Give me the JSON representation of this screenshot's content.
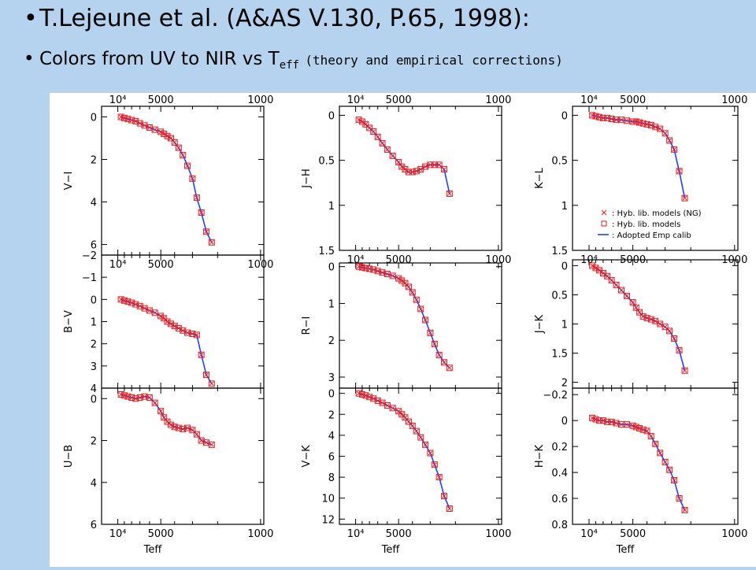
{
  "slide": {
    "bullet1": "T.Lejeune et al. (A&AS V.130, P.65, 1998):",
    "bullet2_main": "Colors from UV to NIR vs T",
    "bullet2_sub": "eff",
    "bullet2_paren": "(theory and empirical corrections)"
  },
  "colors": {
    "background": "#b5d3ef",
    "model_marker": "#e41a1c",
    "calibration_line": "#2040ff"
  },
  "chart_data": [
    {
      "type": "scatter",
      "ylabel": "V−I",
      "xlabel": "",
      "x_ticks": [
        "10⁴",
        "5000",
        "1000"
      ],
      "top_axis_ticks": [
        "10⁴",
        "5000",
        "1000"
      ],
      "y_ticks": [
        "0",
        "2",
        "4",
        "6"
      ],
      "ylim": [
        -0.5,
        6.5
      ],
      "ydir": "down",
      "x": [
        9500,
        9000,
        8500,
        8000,
        7500,
        7000,
        6500,
        6000,
        5500,
        5000,
        4750,
        4500,
        4250,
        4000,
        3750,
        3500,
        3250,
        3000,
        2800,
        2600,
        2400,
        2200
      ],
      "series": [
        {
          "name": "Hyb. lib. models",
          "values": [
            0.0,
            0.05,
            0.1,
            0.15,
            0.2,
            0.3,
            0.4,
            0.5,
            0.6,
            0.7,
            0.8,
            0.9,
            1.0,
            1.2,
            1.45,
            1.8,
            2.3,
            2.9,
            3.8,
            4.5,
            5.4,
            5.9
          ]
        }
      ]
    },
    {
      "type": "scatter",
      "ylabel": "J−H",
      "xlabel": "",
      "x_ticks": [
        "10⁴",
        "5000",
        "1000"
      ],
      "top_axis_ticks": [
        "10⁴",
        "5000",
        "1000"
      ],
      "y_ticks": [
        "0",
        "0.5",
        "1",
        "1.5"
      ],
      "ylim": [
        -0.1,
        1.5
      ],
      "ydir": "down",
      "x": [
        9500,
        9000,
        8500,
        8000,
        7500,
        7000,
        6500,
        6000,
        5500,
        5000,
        4750,
        4500,
        4250,
        4000,
        3750,
        3500,
        3250,
        3000,
        2800,
        2600,
        2400,
        2200
      ],
      "series": [
        {
          "name": "Hyb. lib. models",
          "values": [
            0.05,
            0.07,
            0.1,
            0.14,
            0.18,
            0.24,
            0.31,
            0.38,
            0.45,
            0.52,
            0.57,
            0.6,
            0.63,
            0.63,
            0.62,
            0.6,
            0.57,
            0.55,
            0.55,
            0.55,
            0.6,
            0.87
          ]
        }
      ]
    },
    {
      "type": "scatter",
      "ylabel": "K−L",
      "xlabel": "",
      "x_ticks": [
        "10⁴",
        "5000",
        "1000"
      ],
      "top_axis_ticks": [
        "10⁴",
        "5000",
        "1000"
      ],
      "y_ticks": [
        "0",
        "0.5",
        "1",
        "1.5"
      ],
      "ylim": [
        -0.1,
        1.5
      ],
      "ydir": "down",
      "x": [
        9500,
        9000,
        8500,
        8000,
        7500,
        7000,
        6500,
        6000,
        5500,
        5000,
        4750,
        4500,
        4250,
        4000,
        3750,
        3500,
        3250,
        3000,
        2800,
        2600,
        2400,
        2200
      ],
      "series": [
        {
          "name": "Hyb. lib. models",
          "values": [
            0.0,
            0.01,
            0.02,
            0.03,
            0.03,
            0.04,
            0.05,
            0.05,
            0.06,
            0.07,
            0.07,
            0.08,
            0.09,
            0.1,
            0.11,
            0.13,
            0.15,
            0.2,
            0.28,
            0.38,
            0.62,
            0.92
          ]
        }
      ],
      "legend": {
        "position": "bottom-right",
        "entries": [
          "Hyb. lib. models (NG)",
          "Hyb. lib. models",
          "Adopted Emp calib"
        ]
      }
    },
    {
      "type": "scatter",
      "ylabel": "B−V",
      "xlabel": "",
      "x_ticks": [],
      "y_ticks": [
        "−2",
        "−1",
        "0",
        "1",
        "2",
        "3",
        "4"
      ],
      "ylim": [
        -2,
        4
      ],
      "ydir": "down",
      "x": [
        9500,
        9000,
        8500,
        8000,
        7500,
        7000,
        6500,
        6000,
        5500,
        5000,
        4750,
        4500,
        4250,
        4000,
        3750,
        3500,
        3250,
        3000,
        2800,
        2600,
        2400,
        2200
      ],
      "series": [
        {
          "name": "Hyb. lib. models",
          "values": [
            0.0,
            0.05,
            0.1,
            0.15,
            0.22,
            0.3,
            0.4,
            0.5,
            0.6,
            0.75,
            0.85,
            1.0,
            1.1,
            1.2,
            1.3,
            1.4,
            1.5,
            1.55,
            1.6,
            2.5,
            3.4,
            3.8
          ]
        }
      ]
    },
    {
      "type": "scatter",
      "ylabel": "R−I",
      "xlabel": "",
      "x_ticks": [],
      "y_ticks": [
        "0",
        "1",
        "2",
        "3"
      ],
      "ylim": [
        -0.1,
        3.3
      ],
      "ydir": "down",
      "x": [
        9500,
        9000,
        8500,
        8000,
        7500,
        7000,
        6500,
        6000,
        5500,
        5000,
        4750,
        4500,
        4250,
        4000,
        3750,
        3500,
        3250,
        3000,
        2800,
        2600,
        2400,
        2200
      ],
      "series": [
        {
          "name": "Hyb. lib. models",
          "values": [
            0.0,
            0.02,
            0.04,
            0.06,
            0.08,
            0.12,
            0.16,
            0.2,
            0.25,
            0.32,
            0.38,
            0.45,
            0.55,
            0.7,
            0.9,
            1.15,
            1.45,
            1.8,
            2.1,
            2.4,
            2.6,
            2.75
          ]
        }
      ]
    },
    {
      "type": "scatter",
      "ylabel": "J−K",
      "xlabel": "",
      "x_ticks": [],
      "y_ticks": [
        "0",
        "0.5",
        "1",
        "1.5",
        "2"
      ],
      "ylim": [
        -0.1,
        2.1
      ],
      "ydir": "down",
      "x": [
        9500,
        9000,
        8500,
        8000,
        7500,
        7000,
        6500,
        6000,
        5500,
        5000,
        4750,
        4500,
        4250,
        4000,
        3750,
        3500,
        3250,
        3000,
        2800,
        2600,
        2400,
        2200
      ],
      "series": [
        {
          "name": "Hyb. lib. models",
          "values": [
            0.0,
            0.04,
            0.08,
            0.13,
            0.18,
            0.25,
            0.33,
            0.42,
            0.52,
            0.63,
            0.72,
            0.8,
            0.87,
            0.9,
            0.92,
            0.95,
            1.0,
            1.05,
            1.12,
            1.25,
            1.45,
            1.8
          ]
        }
      ]
    },
    {
      "type": "scatter",
      "ylabel": "U−B",
      "xlabel": "Teff",
      "x_ticks": [
        "10⁴",
        "5000",
        "1000"
      ],
      "y_ticks": [
        "0",
        "2",
        "4",
        "6"
      ],
      "ylim": [
        -0.5,
        6
      ],
      "ydir": "down",
      "x": [
        9500,
        9000,
        8500,
        8000,
        7500,
        7000,
        6500,
        6000,
        5500,
        5000,
        4750,
        4500,
        4250,
        4000,
        3750,
        3500,
        3250,
        3000,
        2800,
        2600,
        2400,
        2200
      ],
      "series": [
        {
          "name": "Hyb. lib. models",
          "values": [
            -0.2,
            -0.15,
            -0.1,
            -0.05,
            0.0,
            -0.05,
            -0.1,
            -0.05,
            0.2,
            0.6,
            0.9,
            1.1,
            1.25,
            1.35,
            1.4,
            1.45,
            1.4,
            1.5,
            1.7,
            2.0,
            2.1,
            2.2
          ]
        }
      ]
    },
    {
      "type": "scatter",
      "ylabel": "V−K",
      "xlabel": "Teff",
      "x_ticks": [
        "10⁴",
        "5000",
        "1000"
      ],
      "y_ticks": [
        "0",
        "2",
        "4",
        "6",
        "8",
        "10",
        "12"
      ],
      "ylim": [
        -0.5,
        12.5
      ],
      "ydir": "down",
      "x": [
        9500,
        9000,
        8500,
        8000,
        7500,
        7000,
        6500,
        6000,
        5500,
        5000,
        4750,
        4500,
        4250,
        4000,
        3750,
        3500,
        3250,
        3000,
        2800,
        2600,
        2400,
        2200
      ],
      "series": [
        {
          "name": "Hyb. lib. models",
          "values": [
            0.0,
            0.1,
            0.2,
            0.35,
            0.5,
            0.7,
            0.9,
            1.15,
            1.4,
            1.7,
            2.0,
            2.3,
            2.7,
            3.1,
            3.6,
            4.2,
            4.9,
            5.7,
            6.8,
            8.0,
            9.8,
            11.0
          ]
        }
      ]
    },
    {
      "type": "scatter",
      "ylabel": "H−K",
      "xlabel": "Teff",
      "x_ticks": [
        "10⁴",
        "5000",
        "1000"
      ],
      "y_ticks": [
        "−0.2",
        "0",
        "0.2",
        "0.4",
        "0.6",
        "0.8"
      ],
      "ylim": [
        -0.25,
        0.8
      ],
      "ydir": "down",
      "x": [
        9500,
        9000,
        8500,
        8000,
        7500,
        7000,
        6500,
        6000,
        5500,
        5000,
        4750,
        4500,
        4250,
        4000,
        3750,
        3500,
        3250,
        3000,
        2800,
        2600,
        2400,
        2200
      ],
      "series": [
        {
          "name": "Hyb. lib. models",
          "values": [
            -0.02,
            -0.01,
            0.0,
            0.0,
            0.01,
            0.01,
            0.02,
            0.03,
            0.03,
            0.04,
            0.05,
            0.06,
            0.07,
            0.08,
            0.12,
            0.18,
            0.25,
            0.32,
            0.38,
            0.46,
            0.6,
            0.69
          ]
        }
      ]
    }
  ]
}
